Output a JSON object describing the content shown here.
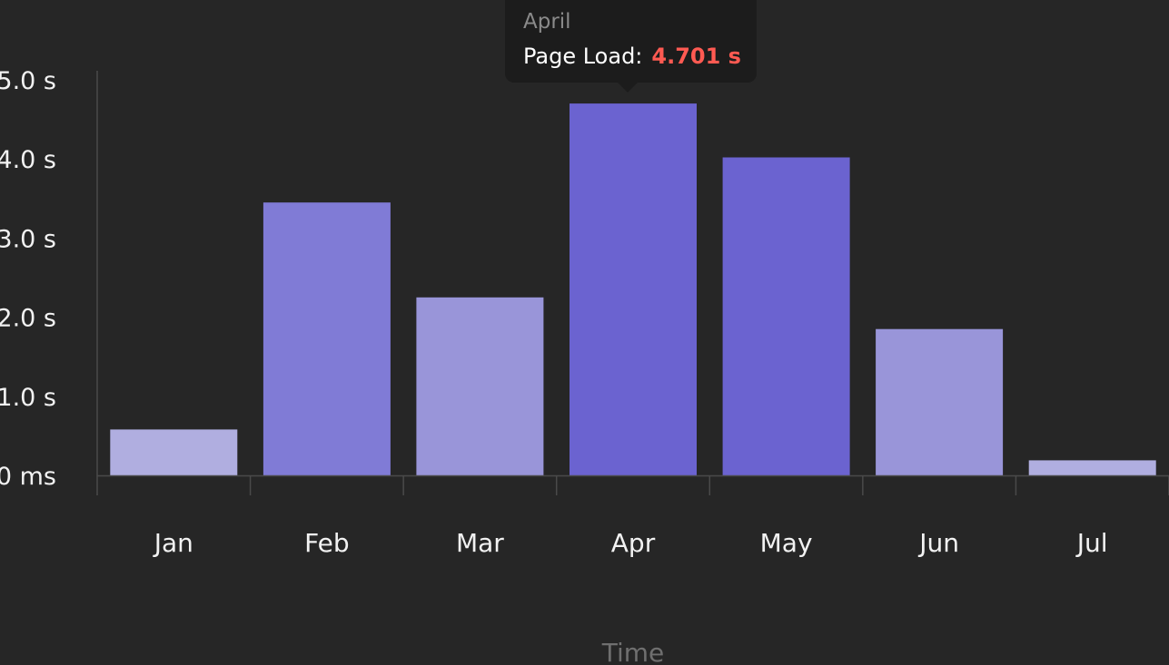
{
  "tooltip": {
    "title": "April",
    "series_label": "Page Load:",
    "value_label": "4.701 s"
  },
  "colors": {
    "background": "#262626",
    "axis": "#4a4a4a",
    "tooltip_value": "#ff5a52",
    "bar_shades": [
      "#b0aee0",
      "#807bd6",
      "#9995d9",
      "#6b63d0"
    ]
  },
  "chart_data": {
    "type": "bar",
    "categories": [
      "Jan",
      "Feb",
      "Mar",
      "Apr",
      "May",
      "Jun",
      "Jul"
    ],
    "values": [
      0.58,
      3.45,
      2.25,
      4.701,
      4.02,
      1.85,
      0.19
    ],
    "xlabel": "Time",
    "ylabel": "",
    "ylim": [
      0,
      5
    ],
    "y_ticks": [
      {
        "value": 0,
        "label": "0 ms"
      },
      {
        "value": 1,
        "label": "1.0 s"
      },
      {
        "value": 2,
        "label": "2.0 s"
      },
      {
        "value": 3,
        "label": "3.0 s"
      },
      {
        "value": 4,
        "label": "4.0 s"
      },
      {
        "value": 5,
        "label": "5.0 s"
      }
    ],
    "bar_shade_index": [
      0,
      1,
      2,
      3,
      3,
      2,
      0
    ],
    "grid": false,
    "legend": "none"
  }
}
